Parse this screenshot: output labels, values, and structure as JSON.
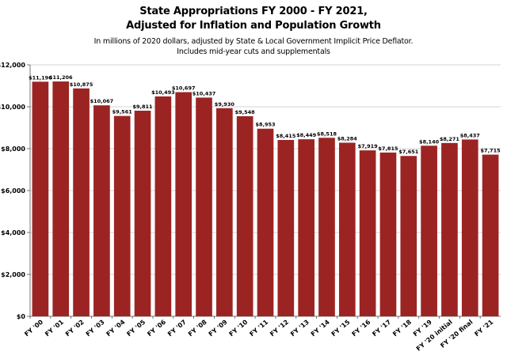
{
  "chart_data": {
    "type": "bar",
    "title_line1": "State Appropriations  FY 2000 - FY 2021,",
    "title_line2": "Adjusted for Inflation and Population Growth",
    "subtitle_line1": "In millions of 2020 dollars, adjusted by State & Local Government Implicit Price Deflator.",
    "subtitle_line2": "Includes mid-year cuts and supplementals",
    "xlabel": "",
    "ylabel": "",
    "ylim": [
      0,
      12000
    ],
    "y_ticks": [
      0,
      2000,
      4000,
      6000,
      8000,
      10000,
      12000
    ],
    "y_tick_labels": [
      "$0",
      "$2,000",
      "$4,000",
      "$6,000",
      "$8,000",
      "$10,000",
      "$12,000"
    ],
    "grid": true,
    "bar_color": "#9b2423",
    "categories": [
      "FY '00",
      "FY '01",
      "FY '02",
      "FY '03",
      "FY '04",
      "FY '05",
      "FY '06",
      "FY '07",
      "FY '08",
      "FY '09",
      "FY '10",
      "FY '11",
      "FY '12",
      "FY '13",
      "FY '14",
      "FY '15",
      "FY '16",
      "FY '17",
      "FY '18",
      "FY '19",
      "FY '20 initial",
      "FY '20 final",
      "FY '21"
    ],
    "values": [
      11196,
      11206,
      10875,
      10067,
      9561,
      9811,
      10493,
      10697,
      10437,
      9930,
      9548,
      8953,
      8415,
      8449,
      8518,
      8284,
      7919,
      7815,
      7651,
      8140,
      8271,
      8437,
      7715
    ],
    "value_labels": [
      "$11,196",
      "$11,206",
      "$10,875",
      "$10,067",
      "$9,561",
      "$9,811",
      "$10,493",
      "$10,697",
      "$10,437",
      "$9,930",
      "$9,548",
      "$8,953",
      "$8,415",
      "$8,449",
      "$8,518",
      "$8,284",
      "$7,919",
      "$7,815",
      "$7,651",
      "$8,140",
      "$8,271",
      "$8,437",
      "$7,715"
    ]
  }
}
